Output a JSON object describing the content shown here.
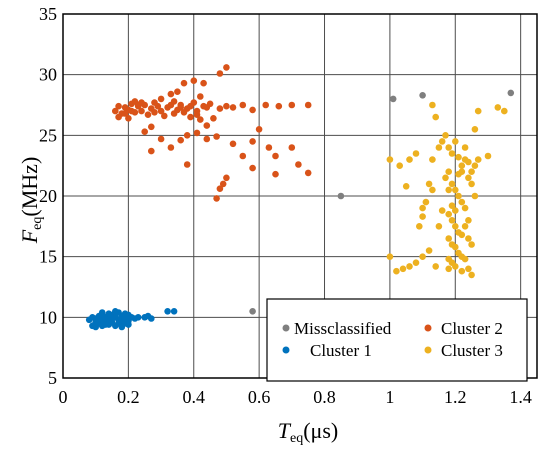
{
  "chart_data": {
    "type": "scatter",
    "xlabel_main": "T",
    "xlabel_sub": "eq",
    "xlabel_unit": "(μs)",
    "ylabel_main": "F",
    "ylabel_sub": "eq",
    "ylabel_unit": "(MHz)",
    "xlim": [
      0,
      1.45
    ],
    "ylim": [
      5,
      35
    ],
    "xticks": [
      0,
      0.2,
      0.4,
      0.6,
      0.8,
      1,
      1.2,
      1.4
    ],
    "xtick_labels": [
      "0",
      "0.2",
      "0.4",
      "0.6",
      "0.8",
      "1",
      "1.2",
      "1.4"
    ],
    "yticks": [
      5,
      10,
      15,
      20,
      25,
      30,
      35
    ],
    "ytick_labels": [
      "5",
      "10",
      "15",
      "20",
      "25",
      "30",
      "35"
    ],
    "grid": true,
    "legend_position": "bottom-right",
    "series": [
      {
        "name": "Missclassified",
        "color": "#7f7f7f",
        "points": [
          [
            0.58,
            10.5
          ],
          [
            0.85,
            20.0
          ],
          [
            1.01,
            28.0
          ],
          [
            1.1,
            28.3
          ],
          [
            1.37,
            28.5
          ]
        ]
      },
      {
        "name": "Cluster 2",
        "color": "#d95319",
        "points": [
          [
            0.16,
            27.0
          ],
          [
            0.17,
            27.4
          ],
          [
            0.18,
            26.8
          ],
          [
            0.19,
            27.3
          ],
          [
            0.2,
            27.1
          ],
          [
            0.21,
            27.6
          ],
          [
            0.22,
            26.9
          ],
          [
            0.23,
            27.4
          ],
          [
            0.24,
            27.0
          ],
          [
            0.25,
            27.5
          ],
          [
            0.26,
            26.7
          ],
          [
            0.27,
            27.2
          ],
          [
            0.28,
            26.9
          ],
          [
            0.29,
            27.4
          ],
          [
            0.3,
            27.0
          ],
          [
            0.31,
            26.6
          ],
          [
            0.32,
            27.3
          ],
          [
            0.33,
            27.5
          ],
          [
            0.34,
            26.8
          ],
          [
            0.35,
            27.1
          ],
          [
            0.36,
            27.5
          ],
          [
            0.37,
            26.9
          ],
          [
            0.38,
            27.2
          ],
          [
            0.39,
            26.5
          ],
          [
            0.4,
            27.7
          ],
          [
            0.41,
            27.0
          ],
          [
            0.42,
            26.3
          ],
          [
            0.43,
            27.4
          ],
          [
            0.44,
            27.3
          ],
          [
            0.45,
            27.6
          ],
          [
            0.46,
            26.4
          ],
          [
            0.48,
            27.2
          ],
          [
            0.5,
            27.4
          ],
          [
            0.52,
            27.3
          ],
          [
            0.55,
            27.5
          ],
          [
            0.58,
            27.1
          ],
          [
            0.62,
            27.5
          ],
          [
            0.66,
            27.4
          ],
          [
            0.7,
            27.5
          ],
          [
            0.75,
            27.5
          ],
          [
            0.17,
            26.5
          ],
          [
            0.2,
            26.4
          ],
          [
            0.22,
            27.8
          ],
          [
            0.24,
            27.7
          ],
          [
            0.28,
            27.7
          ],
          [
            0.3,
            28.0
          ],
          [
            0.33,
            28.4
          ],
          [
            0.35,
            28.6
          ],
          [
            0.37,
            29.3
          ],
          [
            0.4,
            29.5
          ],
          [
            0.42,
            28.2
          ],
          [
            0.43,
            29.3
          ],
          [
            0.48,
            30.1
          ],
          [
            0.5,
            30.6
          ],
          [
            0.25,
            25.3
          ],
          [
            0.27,
            25.7
          ],
          [
            0.3,
            24.7
          ],
          [
            0.33,
            24.0
          ],
          [
            0.36,
            24.6
          ],
          [
            0.38,
            25.0
          ],
          [
            0.41,
            25.2
          ],
          [
            0.44,
            24.7
          ],
          [
            0.47,
            24.9
          ],
          [
            0.52,
            24.3
          ],
          [
            0.55,
            23.3
          ],
          [
            0.58,
            24.5
          ],
          [
            0.6,
            25.5
          ],
          [
            0.63,
            24.0
          ],
          [
            0.65,
            23.3
          ],
          [
            0.7,
            24.0
          ],
          [
            0.72,
            22.6
          ],
          [
            0.75,
            21.9
          ],
          [
            0.65,
            21.8
          ],
          [
            0.58,
            22.3
          ],
          [
            0.5,
            21.5
          ],
          [
            0.49,
            21.0
          ],
          [
            0.48,
            20.6
          ],
          [
            0.47,
            19.8
          ],
          [
            0.38,
            22.6
          ],
          [
            0.27,
            23.7
          ],
          [
            0.36,
            27.3
          ],
          [
            0.34,
            27.8
          ],
          [
            0.39,
            27.4
          ],
          [
            0.41,
            26.7
          ],
          [
            0.44,
            25.8
          ],
          [
            0.21,
            27.0
          ],
          [
            0.23,
            27.5
          ],
          [
            0.19,
            26.8
          ]
        ]
      },
      {
        "name": "Cluster 1",
        "color": "#0072bd",
        "points": [
          [
            0.08,
            9.8
          ],
          [
            0.09,
            10.0
          ],
          [
            0.1,
            9.6
          ],
          [
            0.1,
            9.9
          ],
          [
            0.11,
            10.1
          ],
          [
            0.11,
            9.5
          ],
          [
            0.12,
            9.8
          ],
          [
            0.12,
            10.2
          ],
          [
            0.13,
            9.7
          ],
          [
            0.13,
            10.0
          ],
          [
            0.14,
            9.4
          ],
          [
            0.14,
            9.9
          ],
          [
            0.15,
            10.2
          ],
          [
            0.15,
            9.6
          ],
          [
            0.16,
            10.0
          ],
          [
            0.16,
            9.3
          ],
          [
            0.17,
            9.8
          ],
          [
            0.17,
            10.4
          ],
          [
            0.18,
            9.6
          ],
          [
            0.18,
            10.1
          ],
          [
            0.19,
            9.9
          ],
          [
            0.19,
            9.5
          ],
          [
            0.2,
            10.2
          ],
          [
            0.2,
            9.7
          ],
          [
            0.21,
            10.0
          ],
          [
            0.09,
            9.3
          ],
          [
            0.1,
            9.2
          ],
          [
            0.12,
            9.3
          ],
          [
            0.13,
            9.4
          ],
          [
            0.15,
            9.9
          ],
          [
            0.16,
            10.5
          ],
          [
            0.14,
            10.3
          ],
          [
            0.11,
            9.8
          ],
          [
            0.17,
            9.5
          ],
          [
            0.22,
            9.9
          ],
          [
            0.23,
            10.0
          ],
          [
            0.25,
            10.0
          ],
          [
            0.26,
            10.1
          ],
          [
            0.27,
            9.9
          ],
          [
            0.32,
            10.5
          ],
          [
            0.34,
            10.5
          ],
          [
            0.18,
            9.2
          ],
          [
            0.2,
            9.4
          ],
          [
            0.12,
            10.4
          ],
          [
            0.19,
            10.3
          ]
        ]
      },
      {
        "name": "Cluster 3",
        "color": "#edb120",
        "points": [
          [
            1.13,
            23.0
          ],
          [
            1.15,
            24.0
          ],
          [
            1.16,
            24.5
          ],
          [
            1.17,
            25.0
          ],
          [
            1.18,
            24.0
          ],
          [
            1.19,
            23.5
          ],
          [
            1.2,
            24.5
          ],
          [
            1.21,
            23.2
          ],
          [
            1.22,
            22.5
          ],
          [
            1.23,
            23.0
          ],
          [
            1.24,
            21.5
          ],
          [
            1.18,
            22.0
          ],
          [
            1.19,
            21.0
          ],
          [
            1.2,
            20.5
          ],
          [
            1.21,
            20.0
          ],
          [
            1.22,
            19.5
          ],
          [
            1.23,
            19.0
          ],
          [
            1.18,
            18.5
          ],
          [
            1.19,
            18.0
          ],
          [
            1.2,
            17.5
          ],
          [
            1.21,
            17.0
          ],
          [
            1.22,
            16.8
          ],
          [
            1.18,
            16.5
          ],
          [
            1.19,
            16.0
          ],
          [
            1.2,
            15.8
          ],
          [
            1.21,
            15.3
          ],
          [
            1.22,
            15.0
          ],
          [
            1.18,
            14.8
          ],
          [
            1.19,
            14.5
          ],
          [
            1.2,
            14.2
          ],
          [
            1.23,
            14.8
          ],
          [
            1.24,
            14.0
          ],
          [
            1.25,
            13.5
          ],
          [
            1.14,
            14.2
          ],
          [
            1.12,
            15.5
          ],
          [
            1.1,
            15.0
          ],
          [
            1.08,
            14.5
          ],
          [
            1.06,
            14.2
          ],
          [
            1.04,
            14.0
          ],
          [
            1.02,
            13.8
          ],
          [
            1.0,
            15.0
          ],
          [
            1.09,
            17.5
          ],
          [
            1.1,
            18.3
          ],
          [
            1.11,
            19.5
          ],
          [
            1.12,
            21.0
          ],
          [
            1.13,
            20.5
          ],
          [
            1.05,
            20.8
          ],
          [
            1.03,
            22.5
          ],
          [
            1.06,
            23.0
          ],
          [
            1.08,
            23.5
          ],
          [
            1.0,
            23.0
          ],
          [
            1.1,
            19.0
          ],
          [
            1.15,
            17.5
          ],
          [
            1.16,
            18.8
          ],
          [
            1.17,
            21.5
          ],
          [
            1.23,
            24.0
          ],
          [
            1.24,
            22.8
          ],
          [
            1.25,
            22.0
          ],
          [
            1.26,
            22.5
          ],
          [
            1.27,
            23.0
          ],
          [
            1.25,
            21.0
          ],
          [
            1.26,
            20.0
          ],
          [
            1.24,
            18.0
          ],
          [
            1.25,
            16.0
          ],
          [
            1.22,
            13.8
          ],
          [
            1.26,
            25.5
          ],
          [
            1.27,
            27.0
          ],
          [
            1.3,
            23.3
          ],
          [
            1.33,
            27.3
          ],
          [
            1.35,
            27.0
          ],
          [
            1.13,
            27.5
          ],
          [
            1.14,
            26.5
          ],
          [
            1.18,
            20.5
          ],
          [
            1.19,
            19.2
          ],
          [
            1.2,
            18.8
          ],
          [
            1.21,
            21.8
          ],
          [
            1.22,
            22.0
          ],
          [
            1.23,
            17.5
          ],
          [
            1.18,
            14.0
          ],
          [
            1.24,
            16.5
          ]
        ]
      }
    ]
  }
}
